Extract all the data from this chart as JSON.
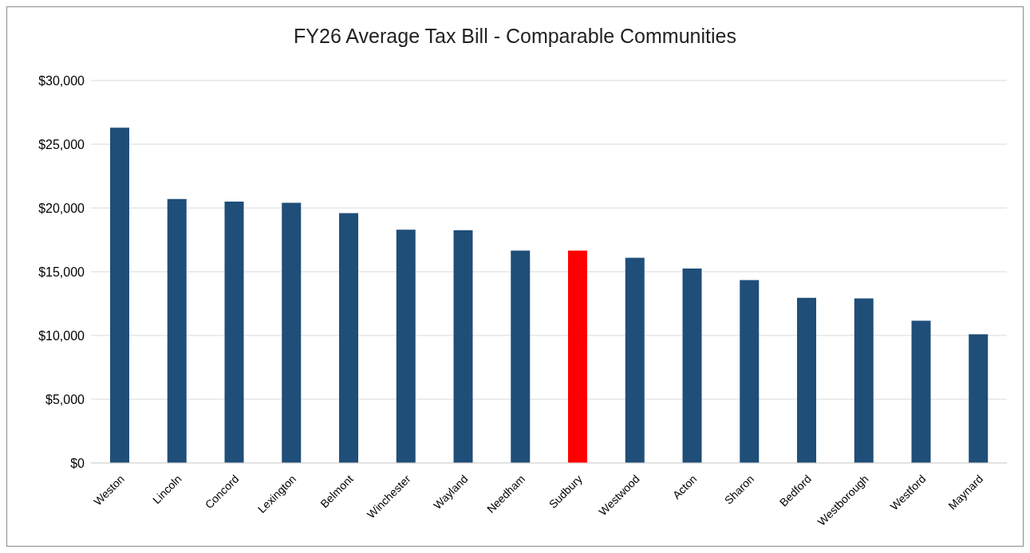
{
  "chart_data": {
    "type": "bar",
    "title": "FY26 Average Tax Bill -  Comparable Communities",
    "categories": [
      "Weston",
      "Lincoln",
      "Concord",
      "Lexington",
      "Belmont",
      "Winchester",
      "Wayland",
      "Needham",
      "Sudbury",
      "Westwood",
      "Acton",
      "Sharon",
      "Bedford",
      "Westborough",
      "Westford",
      "Maynard"
    ],
    "values": [
      26300,
      20700,
      20500,
      20400,
      19600,
      18300,
      18250,
      16650,
      16650,
      16100,
      15250,
      14350,
      12950,
      12900,
      11150,
      10100
    ],
    "colors": [
      "#1f4e79",
      "#1f4e79",
      "#1f4e79",
      "#1f4e79",
      "#1f4e79",
      "#1f4e79",
      "#1f4e79",
      "#1f4e79",
      "#ff0000",
      "#1f4e79",
      "#1f4e79",
      "#1f4e79",
      "#1f4e79",
      "#1f4e79",
      "#1f4e79",
      "#1f4e79"
    ],
    "ylim": [
      0,
      30000
    ],
    "yticks": [
      {
        "value": 0,
        "label": "$0"
      },
      {
        "value": 5000,
        "label": "$5,000"
      },
      {
        "value": 10000,
        "label": "$10,000"
      },
      {
        "value": 15000,
        "label": "$15,000"
      },
      {
        "value": 20000,
        "label": "$20,000"
      },
      {
        "value": 25000,
        "label": "$25,000"
      },
      {
        "value": 30000,
        "label": "$30,000"
      }
    ],
    "grid": "y"
  }
}
